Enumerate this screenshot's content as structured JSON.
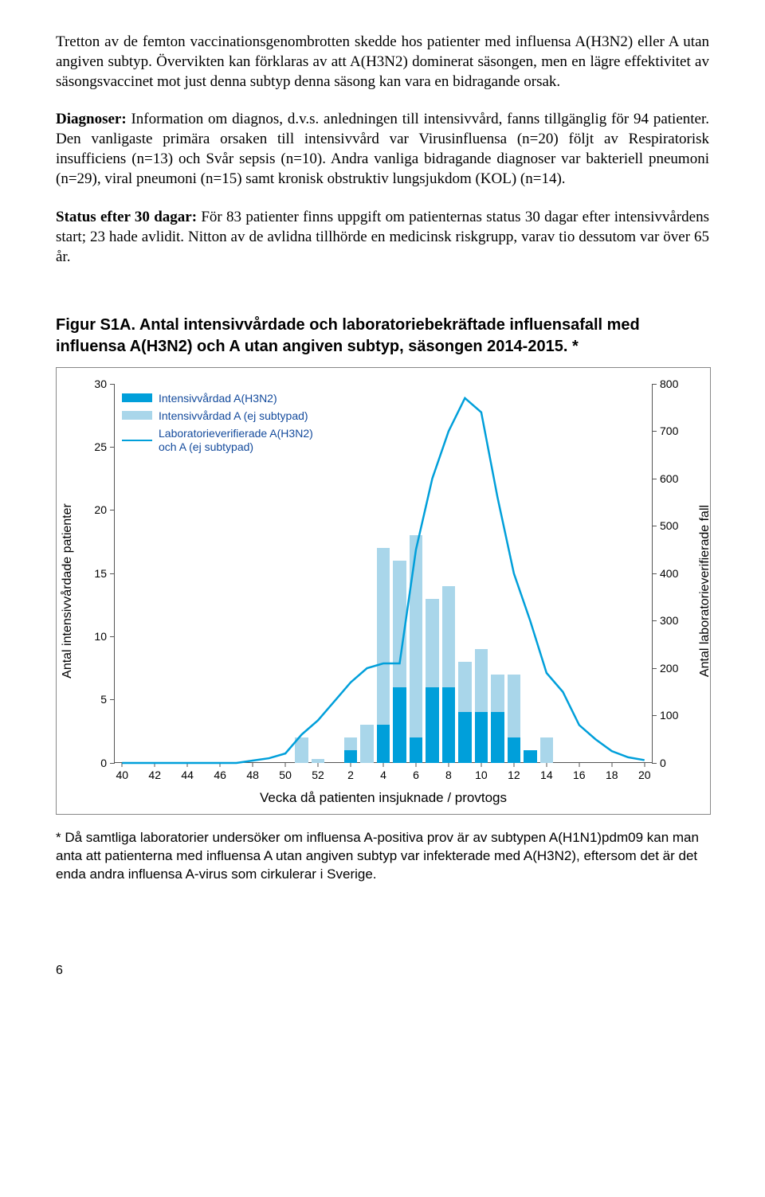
{
  "para1": {
    "text": "Tretton av de femton vaccinationsgenombrotten skedde hos patienter med influensa A(H3N2) eller A utan angiven subtyp. Övervikten kan förklaras av att A(H3N2) dominerat säsongen, men en lägre effektivitet av säsongsvaccinet mot just denna subtyp denna säsong kan vara en bidragande orsak."
  },
  "para2": {
    "label": "Diagnoser:",
    "text": " Information om diagnos, d.v.s. anledningen till intensivvård, fanns tillgänglig för 94 patienter. Den vanligaste primära orsaken till intensivvård var Virusinfluensa (n=20) följt av Respiratorisk insufficiens (n=13) och Svår sepsis (n=10). Andra vanliga bidragande diagnoser var bakteriell pneumoni (n=29), viral pneumoni (n=15) samt kronisk obstruktiv lungsjukdom (KOL) (n=14)."
  },
  "para3": {
    "label": "Status efter 30 dagar:",
    "text": " För 83 patienter finns uppgift om patienternas status 30 dagar efter intensivvårdens start; 23 hade avlidit. Nitton av de avlidna tillhörde en medicinsk riskgrupp, varav tio dessutom var över 65 år."
  },
  "figure_title": "Figur S1A. Antal intensivvårdade och laboratoriebekräftade influensafall med influensa A(H3N2) och A utan angiven subtyp, säsongen 2014-2015. *",
  "chart": {
    "type": "bar+line",
    "left_axis": {
      "label": "Antal intensivvårdade patienter",
      "min": 0,
      "max": 30,
      "step": 5,
      "ticks": [
        0,
        5,
        10,
        15,
        20,
        25,
        30
      ]
    },
    "right_axis": {
      "label": "Antal laboratorieverifierade fall",
      "min": 0,
      "max": 800,
      "step": 100,
      "ticks": [
        0,
        100,
        200,
        300,
        400,
        500,
        600,
        700,
        800
      ]
    },
    "x_axis": {
      "label": "Vecka då patienten insjuknade / provtogs",
      "ticks": [
        "40",
        "42",
        "44",
        "46",
        "48",
        "50",
        "52",
        "2",
        "4",
        "6",
        "8",
        "10",
        "12",
        "14",
        "16",
        "18",
        "20"
      ]
    },
    "categories": [
      "40",
      "41",
      "42",
      "43",
      "44",
      "45",
      "46",
      "47",
      "48",
      "49",
      "50",
      "51",
      "52",
      "1",
      "2",
      "3",
      "4",
      "5",
      "6",
      "7",
      "8",
      "9",
      "10",
      "11",
      "12",
      "13",
      "14",
      "15",
      "16",
      "17",
      "18",
      "19",
      "20"
    ],
    "series_dark": {
      "name": "Intensivvårdad A(H3N2)",
      "color": "#009fda",
      "values": [
        0,
        0,
        0,
        0,
        0,
        0,
        0,
        0,
        0,
        0,
        0,
        0,
        0,
        0,
        1,
        0,
        3,
        6,
        2,
        6,
        6,
        4,
        4,
        4,
        2,
        1,
        0,
        0,
        0,
        0,
        0,
        0,
        0
      ]
    },
    "series_light": {
      "name": "Intensivvårdad A (ej subtypad)",
      "color": "#a9d6ea",
      "values": [
        0,
        0,
        0,
        0,
        0,
        0,
        0,
        0,
        0,
        0,
        0,
        2,
        0.3,
        0,
        1,
        3,
        14,
        10,
        16,
        7,
        8,
        4,
        5,
        3,
        5,
        0,
        2,
        0,
        0,
        0,
        0,
        0,
        0
      ]
    },
    "line": {
      "name": "Laboratorieverifierade A(H3N2) och A (ej subtypad)",
      "color": "#009fda",
      "width": 2.5,
      "values": [
        0,
        0,
        0,
        0,
        0,
        0,
        0,
        0,
        5,
        10,
        20,
        60,
        90,
        130,
        170,
        200,
        210,
        210,
        450,
        600,
        700,
        770,
        740,
        560,
        400,
        300,
        190,
        150,
        80,
        50,
        25,
        12,
        6
      ]
    },
    "legend_color": "#134a9c",
    "bar_width": 0.8,
    "background": "#ffffff",
    "axis_color": "#555555",
    "tick_font_size": 14,
    "label_font_size": 16
  },
  "footnote": "* Då samtliga laboratorier undersöker om influensa A-positiva prov är av subtypen A(H1N1)pdm09 kan man anta att patienterna med influensa A utan angiven subtyp var infekterade med A(H3N2), eftersom det är det enda andra influensa A-virus som cirkulerar i Sverige.",
  "page_number": "6"
}
